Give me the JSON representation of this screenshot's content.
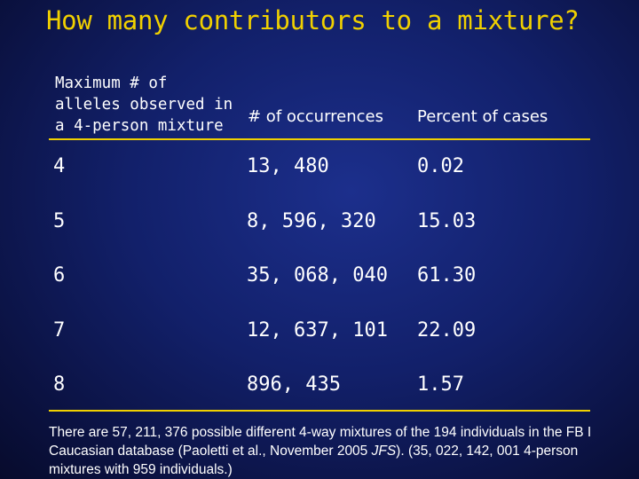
{
  "title": "How many contributors to a mixture?",
  "table": {
    "headers": [
      "Maximum # of\nalleles observed in\na 4-person mixture",
      "# of occurrences",
      "Percent of cases"
    ],
    "header_lines": [
      "Maximum # of",
      "alleles observed in",
      "a 4-person mixture"
    ],
    "rows": [
      {
        "alleles": "4",
        "occurrences": "13, 480",
        "percent": "0.02"
      },
      {
        "alleles": "5",
        "occurrences": "8, 596, 320",
        "percent": "15.03"
      },
      {
        "alleles": "6",
        "occurrences": "35, 068, 040",
        "percent": "61.30"
      },
      {
        "alleles": "7",
        "occurrences": "12, 637, 101",
        "percent": "22.09"
      },
      {
        "alleles": "8",
        "occurrences": "896, 435",
        "percent": "1.57"
      }
    ]
  },
  "note": {
    "part1": "There are 57, 211, 376 possible different 4-way mixtures of the 194 individuals in the FB I Caucasian database (Paoletti et al., November 2005 ",
    "journal": "JFS",
    "part2": ").  (35, 022, 142, 001 4-person mixtures with 959 individuals.)"
  },
  "colors": {
    "title": "#f0d000",
    "rule": "#f0d000",
    "text": "#ffffff"
  }
}
